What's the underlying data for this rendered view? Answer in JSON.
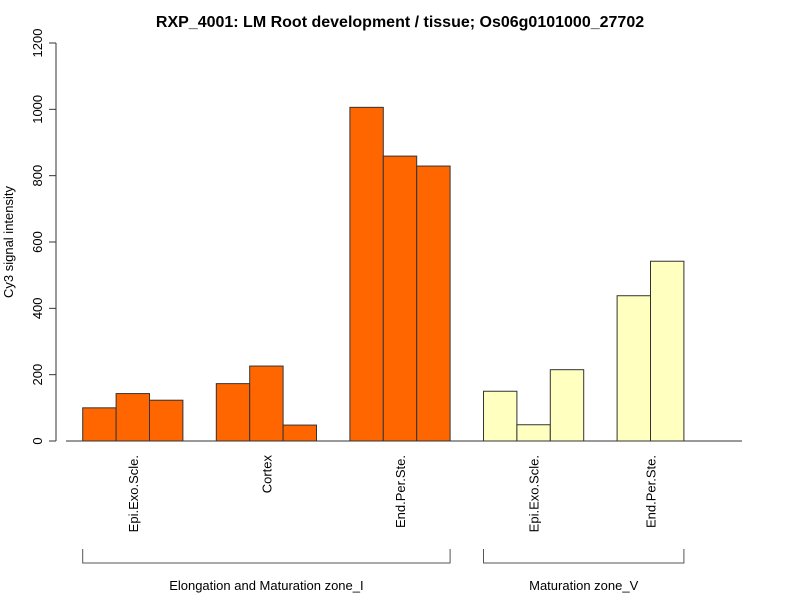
{
  "chart_data": {
    "type": "bar",
    "title": "RXP_4001: LM Root development / tissue; Os06g0101000_27702",
    "ylabel": "Cy3 signal intensity",
    "xlabel": "",
    "ylim": [
      0,
      1200
    ],
    "yticks": [
      "0",
      "200",
      "400",
      "600",
      "800",
      "1000",
      "1200"
    ],
    "grid": false,
    "categories": [
      {
        "label": "Epi.Exo.Scle.",
        "group": 0,
        "color": "#ff6600",
        "values": [
          100,
          143,
          123
        ]
      },
      {
        "label": "Cortex",
        "group": 0,
        "color": "#ff6600",
        "values": [
          173,
          226,
          48
        ]
      },
      {
        "label": "End.Per.Ste.",
        "group": 0,
        "color": "#ff6600",
        "values": [
          1006,
          859,
          829
        ]
      },
      {
        "label": "Epi.Exo.Scle.",
        "group": 1,
        "color": "#ffffc0",
        "values": [
          150,
          49,
          215
        ]
      },
      {
        "label": "End.Per.Ste.",
        "group": 1,
        "color": "#ffffc0",
        "values": [
          438,
          542
        ]
      }
    ],
    "groups": [
      {
        "label": "Elongation and Maturation zone_I"
      },
      {
        "label": "Maturation zone_V"
      }
    ]
  }
}
